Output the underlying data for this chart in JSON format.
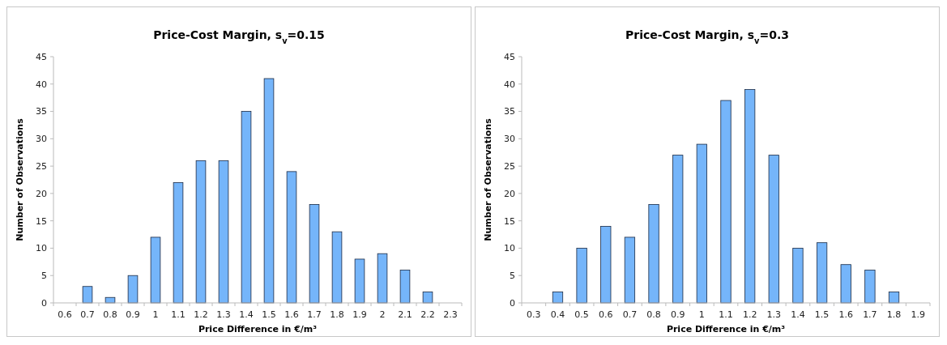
{
  "chart_data": [
    {
      "type": "bar",
      "title": "Price-Cost Margin, s$_{v}$=0.15",
      "xlabel": "Price Difference in €/m³",
      "ylabel": "Number of Observations",
      "categories": [
        "0.6",
        "0.7",
        "0.8",
        "0.9",
        "1",
        "1.1",
        "1.2",
        "1.3",
        "1.4",
        "1.5",
        "1.6",
        "1.7",
        "1.8",
        "1.9",
        "2",
        "2.1",
        "2.2",
        "2.3"
      ],
      "values": [
        0,
        3,
        1,
        5,
        12,
        22,
        26,
        26,
        35,
        41,
        24,
        18,
        13,
        8,
        9,
        6,
        2,
        0
      ],
      "color": "#75b5fa",
      "ylim": [
        0,
        45
      ],
      "yticks": [
        0,
        5,
        10,
        15,
        20,
        25,
        30,
        35,
        40,
        45
      ],
      "grid": false
    },
    {
      "type": "bar",
      "title": "Price-Cost Margin, s$_{v}$=0.3",
      "xlabel": "Price Difference in €/m³",
      "ylabel": "Number of Observations",
      "categories": [
        "0.3",
        "0.4",
        "0.5",
        "0.6",
        "0.7",
        "0.8",
        "0.9",
        "1",
        "1.1",
        "1.2",
        "1.3",
        "1.4",
        "1.5",
        "1.6",
        "1.7",
        "1.8",
        "1.9"
      ],
      "values": [
        0,
        2,
        10,
        14,
        12,
        18,
        27,
        29,
        37,
        39,
        27,
        10,
        11,
        7,
        6,
        2,
        0
      ],
      "color": "#75b5fa",
      "ylim": [
        0,
        45
      ],
      "yticks": [
        0,
        5,
        10,
        15,
        20,
        25,
        30,
        35,
        40,
        45
      ],
      "grid": false
    }
  ]
}
